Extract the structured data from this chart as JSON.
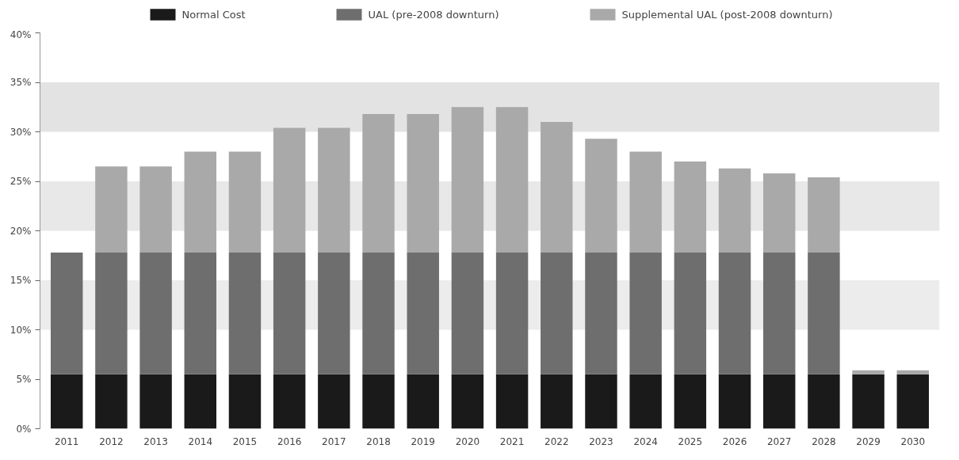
{
  "chart_data": {
    "type": "bar",
    "stacked": true,
    "legend": "top",
    "grid": false,
    "categories": [
      "2011",
      "2012",
      "2013",
      "2014",
      "2015",
      "2016",
      "2017",
      "2018",
      "2019",
      "2020",
      "2021",
      "2022",
      "2023",
      "2024",
      "2025",
      "2026",
      "2027",
      "2028",
      "2029",
      "2030"
    ],
    "series": [
      {
        "name": "Normal Cost",
        "color": "#1a1a1a",
        "values": [
          5.5,
          5.5,
          5.5,
          5.5,
          5.5,
          5.5,
          5.5,
          5.5,
          5.5,
          5.5,
          5.5,
          5.5,
          5.5,
          5.5,
          5.5,
          5.5,
          5.5,
          5.5,
          5.5,
          5.5
        ]
      },
      {
        "name": "UAL (pre-2008 downturn)",
        "color": "#6e6e6e",
        "values": [
          12.3,
          12.3,
          12.3,
          12.3,
          12.3,
          12.3,
          12.3,
          12.3,
          12.3,
          12.3,
          12.3,
          12.3,
          12.3,
          12.3,
          12.3,
          12.3,
          12.3,
          12.3,
          0,
          0
        ]
      },
      {
        "name": "Supplemental UAL (post-2008 downturn)",
        "color": "#a9a9a9",
        "values": [
          0,
          8.7,
          8.7,
          10.2,
          10.2,
          12.6,
          12.6,
          14.0,
          14.0,
          14.7,
          14.7,
          13.2,
          11.5,
          10.2,
          9.2,
          8.5,
          8.0,
          7.6,
          0.4,
          0.4
        ]
      }
    ],
    "ylim": [
      0,
      40
    ],
    "yticks": [
      {
        "value": 0,
        "label": "0%"
      },
      {
        "value": 5,
        "label": "5%"
      },
      {
        "value": 10,
        "label": "10%"
      },
      {
        "value": 15,
        "label": "15%"
      },
      {
        "value": 20,
        "label": "20%"
      },
      {
        "value": 25,
        "label": "25%"
      },
      {
        "value": 30,
        "label": "30%"
      },
      {
        "value": 35,
        "label": "35%"
      },
      {
        "value": 40,
        "label": "40%"
      }
    ],
    "bands": [
      {
        "axis": "y",
        "from": 10,
        "to": 15,
        "color": "#ececec"
      },
      {
        "axis": "y",
        "from": 20,
        "to": 25,
        "color": "#e8e8e8"
      },
      {
        "axis": "y",
        "from": 30,
        "to": 35,
        "color": "#e3e3e3"
      }
    ]
  }
}
